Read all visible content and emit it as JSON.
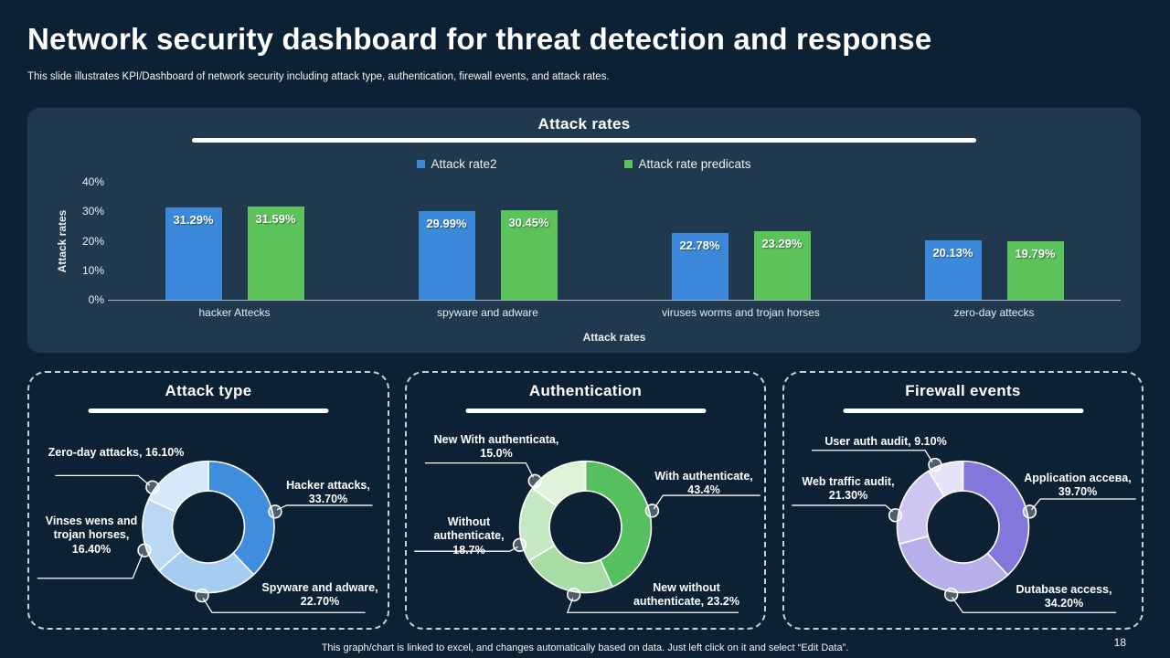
{
  "slide": {
    "title": "Network security dashboard for threat detection and response",
    "subtitle": "This slide illustrates KPI/Dashboard of network security including attack type,  authentication, firewall events, and attack rates.",
    "footer": "This graph/chart is linked to excel,  and changes automatically based on data. Just left click on it and select “Edit Data”.",
    "page_number": "18"
  },
  "colors": {
    "slide_background": "#0C2133",
    "bar_panel_background": "#21394E",
    "accent_blue": "#3C89DC",
    "accent_green": "#5CC25A",
    "dashed_border": "#C6D2DA"
  },
  "chart_data": [
    {
      "type": "bar",
      "title": "Attack rates",
      "categories": [
        "hacker Attecks",
        "spyware and adware",
        "viruses worms and trojan horses",
        "zero-day attecks"
      ],
      "series": [
        {
          "name": "Attack rate2",
          "color": "#3C89DC",
          "values": [
            31.29,
            29.99,
            22.78,
            20.13
          ],
          "labels": [
            "31.29%",
            "29.99%",
            "22.78%",
            "20.13%"
          ]
        },
        {
          "name": "Attack rate predicats",
          "color": "#5CC25A",
          "values": [
            31.59,
            30.45,
            23.29,
            19.79
          ],
          "labels": [
            "31.59%",
            "30.45%",
            "23.29%",
            "19.79%"
          ]
        }
      ],
      "xlabel": "Attack rates",
      "ylabel": "Attack rates",
      "ylim": [
        0,
        40
      ],
      "yticks": [
        "40%",
        "30%",
        "20%",
        "10%",
        "0%"
      ],
      "grid": false,
      "legend_position": "top"
    },
    {
      "type": "donut",
      "title": "Attack type",
      "slices": [
        {
          "label": "Hacker attacks, 33.70%",
          "value": 33.7,
          "color": "#3F8EDE"
        },
        {
          "label": "Spyware and adware, 22.70%",
          "value": 22.7,
          "color": "#A5CCF1"
        },
        {
          "label": "Vinses wens and trojan horses, 16.40%",
          "value": 16.4,
          "color": "#B9D8F4"
        },
        {
          "label": "Zero-day attacks, 16.10%",
          "value": 16.1,
          "color": "#D6E9FA"
        }
      ]
    },
    {
      "type": "donut",
      "title": "Authentication",
      "slices": [
        {
          "label": "With authenticate, 43.4%",
          "value": 43.4,
          "color": "#56C05F"
        },
        {
          "label": "New without authenticate, 23.2%",
          "value": 23.2,
          "color": "#A8DCA5"
        },
        {
          "label": "Without authenticate, 18.7%",
          "value": 18.7,
          "color": "#C6E8C3"
        },
        {
          "label": "New With authenticata, 15.0%",
          "value": 15.0,
          "color": "#DFF3DB"
        }
      ]
    },
    {
      "type": "donut",
      "title": "Firewall events",
      "slices": [
        {
          "label": "Application acceвa, 39.70%",
          "value": 39.7,
          "color": "#8278DC"
        },
        {
          "label": "Dutabase access, 34.20%",
          "value": 34.2,
          "color": "#B7AFE9"
        },
        {
          "label": "Web traffic audit, 21.30%",
          "value": 21.3,
          "color": "#CDC6F0"
        },
        {
          "label": "User auth audit, 9.10%",
          "value": 9.1,
          "color": "#E6E3F8"
        }
      ]
    }
  ]
}
